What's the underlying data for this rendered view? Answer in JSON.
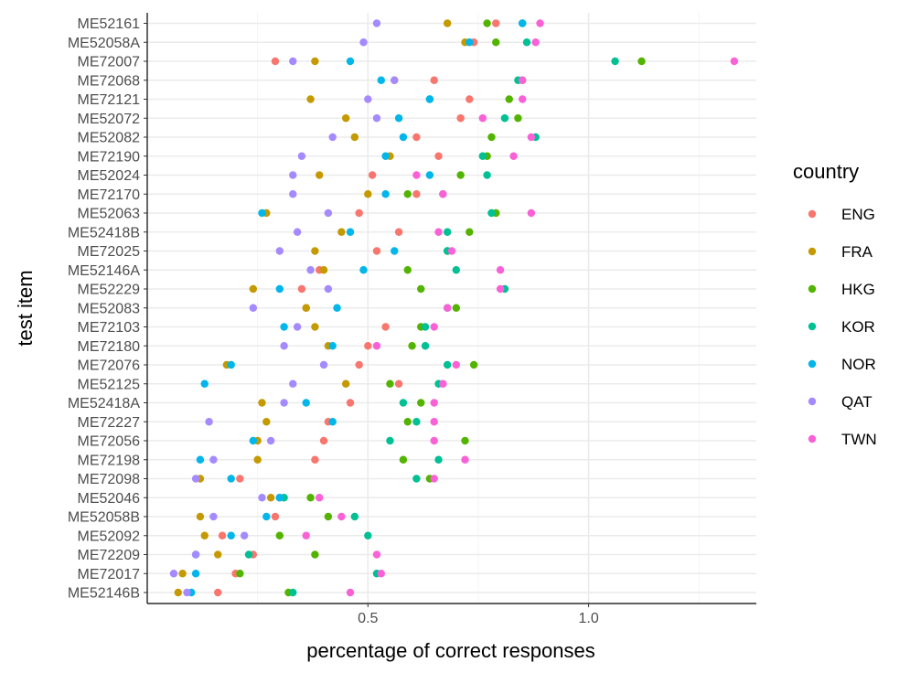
{
  "chart_data": {
    "type": "scatter",
    "xlabel": "percentage of correct responses",
    "ylabel": "test item",
    "xlim": [
      0.0,
      1.38
    ],
    "x_ticks": [
      0.5,
      1.0
    ],
    "x_tick_labels": [
      "0.5",
      "1.0"
    ],
    "grid": true,
    "legend_position": "right",
    "legend_title": "country",
    "categories": [
      "ME52161",
      "ME52058A",
      "ME72007",
      "ME72068",
      "ME72121",
      "ME52072",
      "ME52082",
      "ME72190",
      "ME52024",
      "ME72170",
      "ME52063",
      "ME52418B",
      "ME72025",
      "ME52146A",
      "ME52229",
      "ME52083",
      "ME72103",
      "ME72180",
      "ME72076",
      "ME52125",
      "ME52418A",
      "ME72227",
      "ME72056",
      "ME72198",
      "ME72098",
      "ME52046",
      "ME52058B",
      "ME52092",
      "ME72209",
      "ME72017",
      "ME52146B"
    ],
    "series": [
      {
        "name": "ENG",
        "color": "#F8766D",
        "values": [
          0.79,
          0.74,
          0.29,
          0.65,
          0.73,
          0.71,
          0.61,
          0.66,
          0.51,
          0.61,
          0.48,
          0.57,
          0.52,
          0.39,
          0.35,
          0.36,
          0.54,
          0.5,
          0.48,
          0.57,
          0.46,
          0.41,
          0.4,
          0.38,
          0.21,
          0.3,
          0.29,
          0.17,
          0.24,
          0.2,
          0.16
        ]
      },
      {
        "name": "FRA",
        "color": "#C49A00",
        "values": [
          0.68,
          0.72,
          0.38,
          0.56,
          0.37,
          0.45,
          0.47,
          0.55,
          0.39,
          0.5,
          0.27,
          0.44,
          0.38,
          0.4,
          0.24,
          0.36,
          0.38,
          0.41,
          0.18,
          0.45,
          0.26,
          0.27,
          0.25,
          0.25,
          0.12,
          0.28,
          0.12,
          0.13,
          0.16,
          0.08,
          0.07
        ]
      },
      {
        "name": "HKG",
        "color": "#53B400",
        "values": [
          0.77,
          0.79,
          1.12,
          0.85,
          0.82,
          0.84,
          0.78,
          0.77,
          0.71,
          0.59,
          0.79,
          0.73,
          0.68,
          0.59,
          0.62,
          0.7,
          0.62,
          0.6,
          0.74,
          0.55,
          0.62,
          0.59,
          0.72,
          0.58,
          0.64,
          0.37,
          0.41,
          0.3,
          0.38,
          0.21,
          0.32
        ]
      },
      {
        "name": "KOR",
        "color": "#00C094",
        "values": [
          0.85,
          0.86,
          1.06,
          0.84,
          0.64,
          0.81,
          0.88,
          0.76,
          0.77,
          0.67,
          0.78,
          0.68,
          0.68,
          0.7,
          0.81,
          0.68,
          0.63,
          0.63,
          0.68,
          0.66,
          0.58,
          0.61,
          0.55,
          0.66,
          0.61,
          0.31,
          0.47,
          0.5,
          0.23,
          0.52,
          0.33
        ]
      },
      {
        "name": "NOR",
        "color": "#00B6EB",
        "values": [
          0.85,
          0.73,
          0.46,
          0.53,
          0.64,
          0.57,
          0.58,
          0.54,
          0.64,
          0.54,
          0.26,
          0.46,
          0.56,
          0.49,
          0.3,
          0.43,
          0.31,
          0.42,
          0.19,
          0.13,
          0.36,
          0.42,
          0.24,
          0.12,
          0.19,
          0.3,
          0.27,
          0.19,
          0.11,
          0.11,
          0.1
        ]
      },
      {
        "name": "QAT",
        "color": "#A58AFF",
        "values": [
          0.52,
          0.49,
          0.33,
          0.56,
          0.5,
          0.52,
          0.42,
          0.35,
          0.33,
          0.33,
          0.41,
          0.34,
          0.3,
          0.37,
          0.41,
          0.24,
          0.34,
          0.31,
          0.4,
          0.33,
          0.31,
          0.14,
          0.28,
          0.15,
          0.11,
          0.26,
          0.15,
          0.22,
          0.11,
          0.06,
          0.09
        ]
      },
      {
        "name": "TWN",
        "color": "#FB61D7",
        "values": [
          0.89,
          0.88,
          1.33,
          0.85,
          0.85,
          0.76,
          0.87,
          0.83,
          0.61,
          0.67,
          0.87,
          0.66,
          0.69,
          0.8,
          0.8,
          0.68,
          0.65,
          0.52,
          0.7,
          0.67,
          0.65,
          0.65,
          0.65,
          0.72,
          0.65,
          0.39,
          0.44,
          0.36,
          0.52,
          0.53,
          0.46
        ]
      }
    ]
  }
}
